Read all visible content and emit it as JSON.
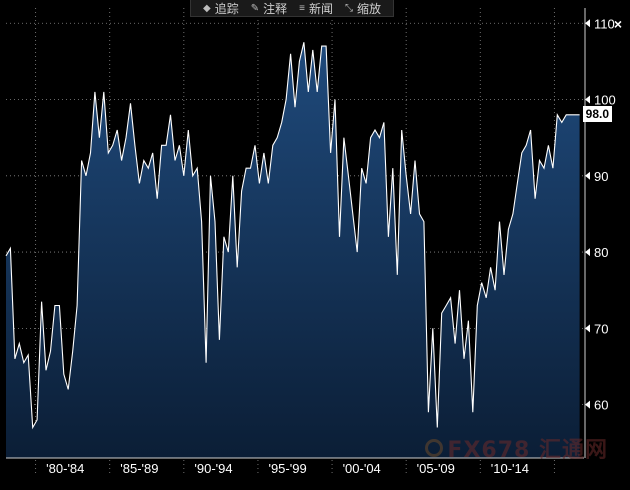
{
  "toolbar": {
    "items": [
      {
        "icon": "track-icon",
        "label": "追踪"
      },
      {
        "icon": "comment-icon",
        "label": "注释"
      },
      {
        "icon": "news-icon",
        "label": "新闻"
      },
      {
        "icon": "zoom-icon",
        "label": "缩放"
      }
    ],
    "close_label": "×"
  },
  "last_value_label": "98.0",
  "watermark": "FX678 汇通网",
  "colors": {
    "background": "#000000",
    "fill_top": "#1f4a7c",
    "fill_bottom": "#0b1e36",
    "line": "#ffffff",
    "grid": "#9a9a9a"
  },
  "chart_data": {
    "type": "area",
    "title": "",
    "xlabel": "",
    "ylabel": "",
    "ylim": [
      53,
      112
    ],
    "xlim": [
      1978.0,
      2017.0
    ],
    "y_ticks": [
      60,
      70,
      80,
      90,
      100,
      110
    ],
    "y_tick_labels": [
      "60",
      "70",
      "80",
      "90",
      "100",
      "110"
    ],
    "x_tick_labels": [
      {
        "label": "'80-'84",
        "x": 1982.0
      },
      {
        "label": "'85-'89",
        "x": 1987.0
      },
      {
        "label": "'90-'94",
        "x": 1992.0
      },
      {
        "label": "'95-'99",
        "x": 1997.0
      },
      {
        "label": "'00-'04",
        "x": 2002.0
      },
      {
        "label": "'05-'09",
        "x": 2007.0
      },
      {
        "label": "'10-'14",
        "x": 2012.0
      }
    ],
    "x_group_boundaries": [
      1980.0,
      1985.0,
      1990.0,
      1995.0,
      2000.0,
      2005.0,
      2010.0,
      2015.0
    ],
    "last_value": 98.0,
    "x": [
      1978.0,
      1978.3,
      1978.6,
      1978.9,
      1979.2,
      1979.5,
      1979.8,
      1980.1,
      1980.4,
      1980.7,
      1981.0,
      1981.3,
      1981.6,
      1981.9,
      1982.2,
      1982.5,
      1982.8,
      1983.1,
      1983.4,
      1983.7,
      1984.0,
      1984.3,
      1984.6,
      1984.9,
      1985.2,
      1985.5,
      1985.8,
      1986.1,
      1986.4,
      1986.7,
      1987.0,
      1987.3,
      1987.6,
      1987.9,
      1988.2,
      1988.5,
      1988.8,
      1989.1,
      1989.4,
      1989.7,
      1990.0,
      1990.3,
      1990.6,
      1990.9,
      1991.2,
      1991.5,
      1991.8,
      1992.1,
      1992.4,
      1992.7,
      1993.0,
      1993.3,
      1993.6,
      1993.9,
      1994.2,
      1994.5,
      1994.8,
      1995.1,
      1995.4,
      1995.7,
      1996.0,
      1996.3,
      1996.6,
      1996.9,
      1997.2,
      1997.5,
      1997.8,
      1998.1,
      1998.4,
      1998.7,
      1999.0,
      1999.3,
      1999.6,
      1999.9,
      2000.2,
      2000.5,
      2000.8,
      2001.1,
      2001.4,
      2001.7,
      2002.0,
      2002.3,
      2002.6,
      2002.9,
      2003.2,
      2003.5,
      2003.8,
      2004.1,
      2004.4,
      2004.7,
      2005.0,
      2005.3,
      2005.6,
      2005.9,
      2006.2,
      2006.5,
      2006.8,
      2007.1,
      2007.4,
      2007.7,
      2008.0,
      2008.3,
      2008.6,
      2008.9,
      2009.2,
      2009.5,
      2009.8,
      2010.1,
      2010.4,
      2010.7,
      2011.0,
      2011.3,
      2011.6,
      2011.9,
      2012.2,
      2012.5,
      2012.8,
      2013.1,
      2013.4,
      2013.7,
      2014.0,
      2014.3,
      2014.6,
      2014.9,
      2015.2,
      2015.5,
      2015.8,
      2016.1,
      2016.4,
      2016.7
    ],
    "values": [
      79.5,
      80.5,
      66.0,
      68.0,
      65.5,
      66.5,
      57.0,
      58.0,
      73.5,
      64.5,
      67.0,
      73.0,
      73.0,
      64.0,
      62.0,
      67.0,
      73.0,
      92.0,
      90.0,
      93.0,
      101.0,
      95.0,
      101.0,
      93.0,
      94.0,
      96.0,
      92.0,
      95.0,
      99.5,
      94.0,
      89.0,
      92.0,
      91.0,
      93.0,
      87.0,
      94.0,
      94.0,
      98.0,
      92.0,
      94.0,
      90.0,
      96.0,
      90.0,
      91.0,
      84.0,
      65.5,
      90.0,
      84.0,
      68.5,
      82.0,
      80.0,
      90.0,
      78.0,
      88.0,
      91.0,
      91.0,
      94.0,
      89.0,
      93.0,
      89.0,
      94.0,
      95.0,
      97.0,
      100.0,
      106.0,
      99.0,
      105.0,
      107.5,
      101.0,
      106.5,
      101.0,
      107.0,
      107.0,
      93.0,
      100.0,
      82.0,
      95.0,
      90.0,
      85.0,
      80.0,
      91.0,
      89.0,
      95.0,
      96.0,
      95.0,
      97.0,
      82.0,
      91.0,
      77.0,
      96.0,
      90.0,
      85.0,
      92.0,
      85.0,
      84.0,
      59.0,
      70.0,
      57.0,
      72.0,
      73.0,
      74.0,
      68.0,
      75.0,
      66.0,
      71.0,
      59.0,
      73.0,
      76.0,
      74.0,
      78.0,
      75.0,
      84.0,
      77.0,
      83.0,
      85.0,
      89.0,
      93.0,
      94.0,
      96.0,
      87.0,
      92.0,
      91.0,
      94.0,
      91.0,
      98.0,
      97.0,
      98.0,
      98.0,
      98.0,
      98.0
    ]
  }
}
